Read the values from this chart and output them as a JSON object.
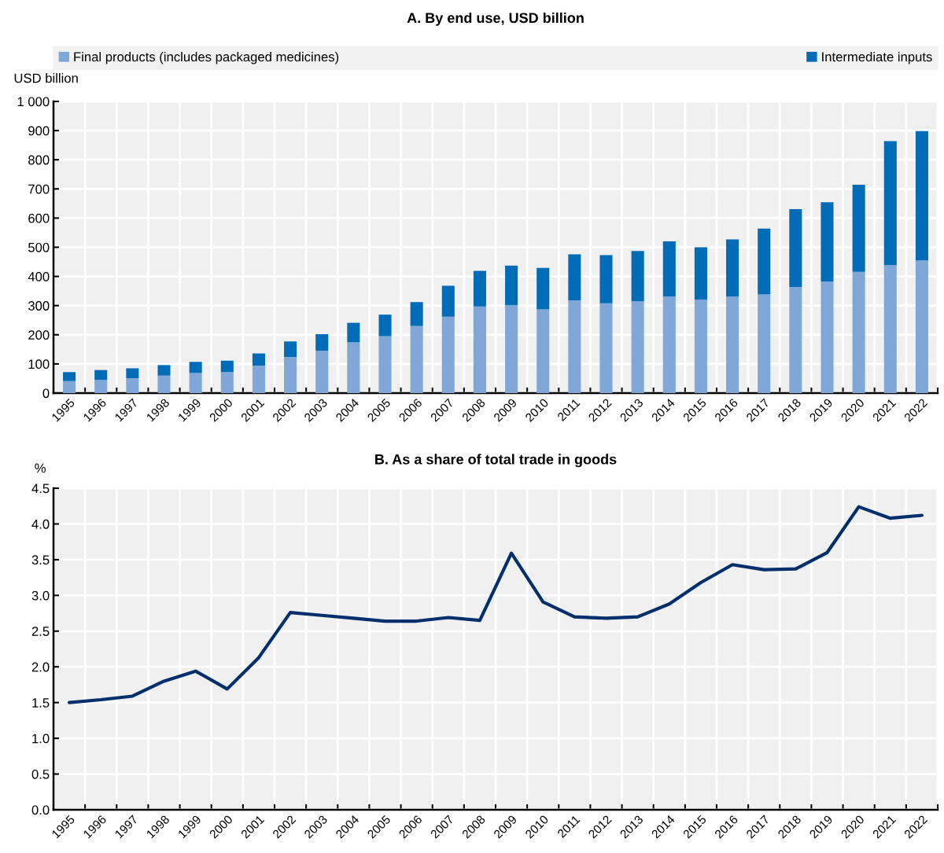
{
  "chart_data": [
    {
      "type": "bar",
      "title": "A. By end use, USD billion",
      "ylabel": "USD billion",
      "stacked": true,
      "legend": "top",
      "grid": true,
      "categories": [
        "1995",
        "1996",
        "1997",
        "1998",
        "1999",
        "2000",
        "2001",
        "2002",
        "2003",
        "2004",
        "2005",
        "2006",
        "2007",
        "2008",
        "2009",
        "2010",
        "2011",
        "2012",
        "2013",
        "2014",
        "2015",
        "2016",
        "2017",
        "2018",
        "2019",
        "2020",
        "2021",
        "2022"
      ],
      "series": [
        {
          "name": "Final products (includes packaged medicines)",
          "color": "#7fa8d9",
          "values": [
            41,
            45,
            51,
            60,
            69,
            72,
            94,
            124,
            145,
            174,
            195,
            230,
            262,
            297,
            302,
            287,
            318,
            308,
            315,
            331,
            321,
            331,
            338,
            364,
            383,
            416,
            439,
            455
          ]
        },
        {
          "name": "Intermediate inputs",
          "color": "#006bb6",
          "values": [
            31,
            34,
            34,
            36,
            38,
            39,
            42,
            53,
            57,
            67,
            74,
            82,
            106,
            122,
            135,
            142,
            158,
            165,
            172,
            189,
            179,
            196,
            226,
            267,
            271,
            298,
            425,
            443
          ]
        }
      ],
      "ylim": [
        0,
        1000
      ],
      "yticks": [
        0,
        100,
        200,
        300,
        400,
        500,
        600,
        700,
        800,
        900,
        {
          "value": 1000,
          "label": "1 000"
        }
      ]
    },
    {
      "type": "line",
      "title": "B. As a share of total trade in goods",
      "ylabel": "%",
      "grid": true,
      "marker": "none",
      "line_style": "solid",
      "categories": [
        "1995",
        "1996",
        "1997",
        "1998",
        "1999",
        "2000",
        "2001",
        "2002",
        "2003",
        "2004",
        "2005",
        "2006",
        "2007",
        "2008",
        "2009",
        "2010",
        "2011",
        "2012",
        "2013",
        "2014",
        "2015",
        "2016",
        "2017",
        "2018",
        "2019",
        "2020",
        "2021",
        "2022"
      ],
      "series": [
        {
          "color": "#002f6c",
          "values": [
            1.5,
            1.54,
            1.59,
            1.8,
            1.94,
            1.69,
            2.13,
            2.76,
            2.72,
            2.68,
            2.64,
            2.64,
            2.69,
            2.65,
            3.59,
            2.91,
            2.7,
            2.68,
            2.7,
            2.88,
            3.18,
            3.43,
            3.36,
            3.37,
            3.6,
            4.24,
            4.08,
            4.12
          ]
        }
      ],
      "ylim": [
        0,
        4.5
      ],
      "yticks": [
        {
          "value": 0,
          "label": "0.0"
        },
        {
          "value": 0.5,
          "label": "0.5"
        },
        {
          "value": 1,
          "label": "1.0"
        },
        {
          "value": 1.5,
          "label": "1.5"
        },
        {
          "value": 2,
          "label": "2.0"
        },
        {
          "value": 2.5,
          "label": "2.5"
        },
        {
          "value": 3,
          "label": "3.0"
        },
        {
          "value": 3.5,
          "label": "3.5"
        },
        {
          "value": 4,
          "label": "4.0"
        },
        {
          "value": 4.5,
          "label": "4.5"
        }
      ]
    }
  ]
}
